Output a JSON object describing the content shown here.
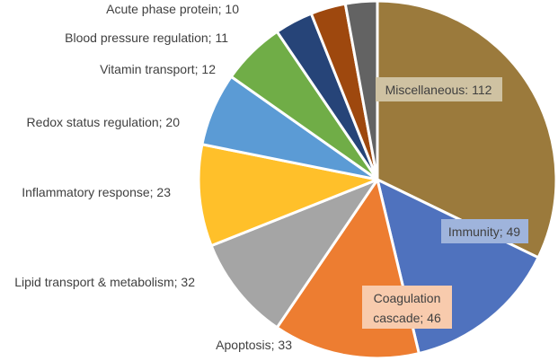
{
  "chart_data": {
    "type": "pie",
    "title": "",
    "start_angle_deg": -90,
    "slices": [
      {
        "category": "Miscellaneous",
        "value": 112,
        "label": "Miscellaneous: 112",
        "color": "#9B7A3C",
        "label_style": "inside-box",
        "box_color": "#CFC2A2"
      },
      {
        "category": "Immunity",
        "value": 49,
        "label": "Immunity; 49",
        "color": "#4F72BE",
        "label_style": "inside-box",
        "box_color": "#9FB4DC"
      },
      {
        "category": "Coagulation cascade",
        "value": 46,
        "label": "Coagulation cascade; 46",
        "label_lines": [
          "Coagulation",
          "cascade; 46"
        ],
        "color": "#ED7D31",
        "label_style": "inside-box",
        "box_color": "#F8CBAD"
      },
      {
        "category": "Apoptosis",
        "value": 33,
        "label": "Apoptosis; 33",
        "color": "#A5A5A5",
        "label_style": "outside"
      },
      {
        "category": "Lipid transport & metabolism",
        "value": 32,
        "label": "Lipid transport & metabolism; 32",
        "color": "#FFC02A",
        "label_style": "outside"
      },
      {
        "category": "Inflammatory response",
        "value": 23,
        "label": "Inflammatory response; 23",
        "color": "#5B9BD5",
        "label_style": "outside"
      },
      {
        "category": "Redox status regulation",
        "value": 20,
        "label": "Redox status regulation; 20",
        "color": "#70AD47",
        "label_style": "outside"
      },
      {
        "category": "Vitamin transport",
        "value": 12,
        "label": "Vitamin transport; 12",
        "color": "#264478",
        "label_style": "outside"
      },
      {
        "category": "Blood pressure regulation",
        "value": 11,
        "label": "Blood pressure regulation; 11",
        "color": "#9E480E",
        "label_style": "outside"
      },
      {
        "category": "Acute phase protein",
        "value": 10,
        "label": "Acute phase protein; 10",
        "color": "#636363",
        "label_style": "outside"
      }
    ]
  }
}
